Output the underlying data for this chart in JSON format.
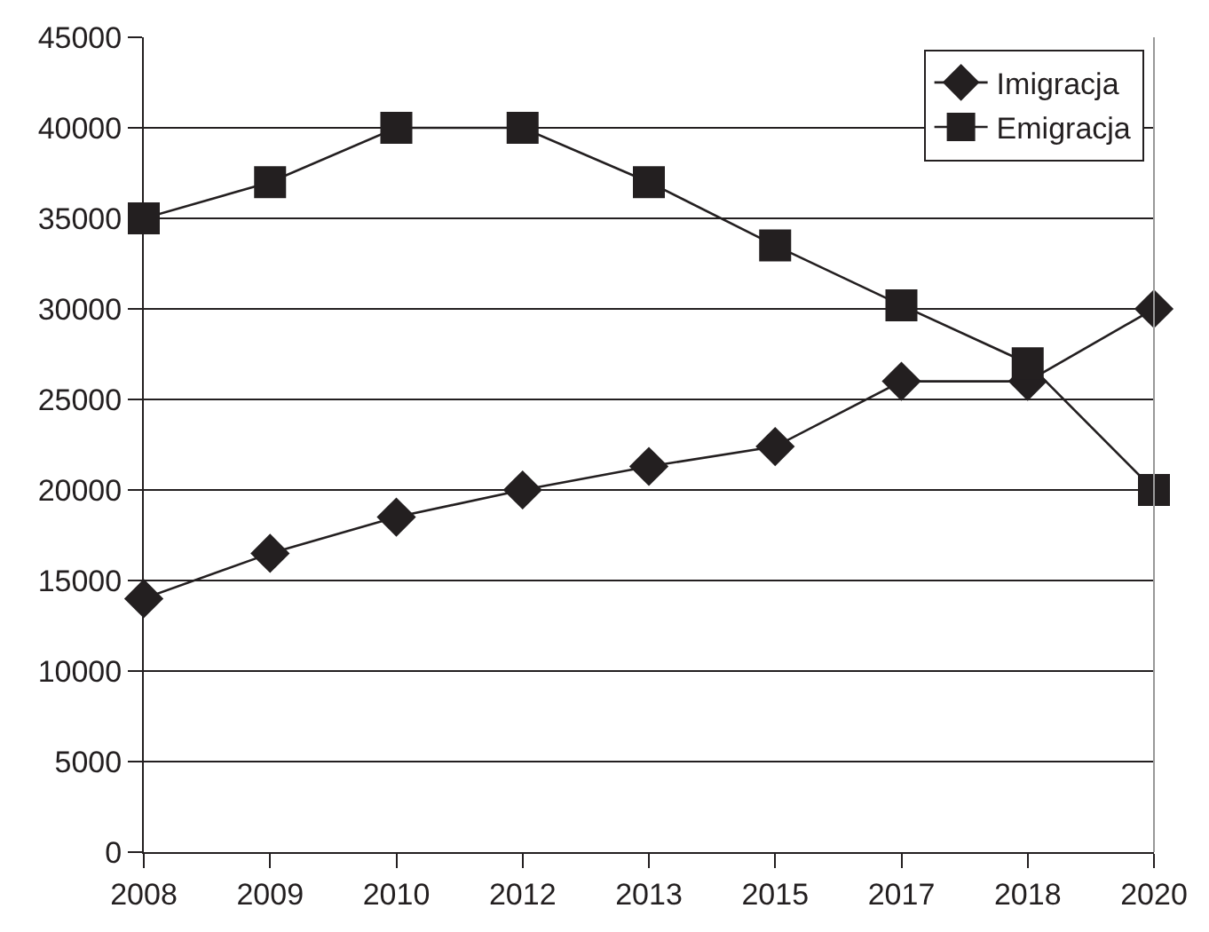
{
  "chart_data": {
    "type": "line",
    "categories": [
      "2008",
      "2009",
      "2010",
      "2012",
      "2013",
      "2015",
      "2017",
      "2018",
      "2020"
    ],
    "series": [
      {
        "name": "Imigracja",
        "color": "#231f20",
        "marker": "diamond",
        "values": [
          14000,
          16500,
          18500,
          20000,
          21300,
          22400,
          26000,
          26000,
          30000
        ]
      },
      {
        "name": "Emigracja",
        "color": "#231f20",
        "marker": "square",
        "values": [
          35000,
          37000,
          40000,
          40000,
          37000,
          33500,
          30200,
          27000,
          20000
        ]
      }
    ],
    "ylim": [
      0,
      45000
    ],
    "yticks": [
      0,
      5000,
      10000,
      15000,
      20000,
      25000,
      30000,
      35000,
      40000,
      45000
    ],
    "grid": "y",
    "legend": "top right",
    "line_style": "solid"
  }
}
